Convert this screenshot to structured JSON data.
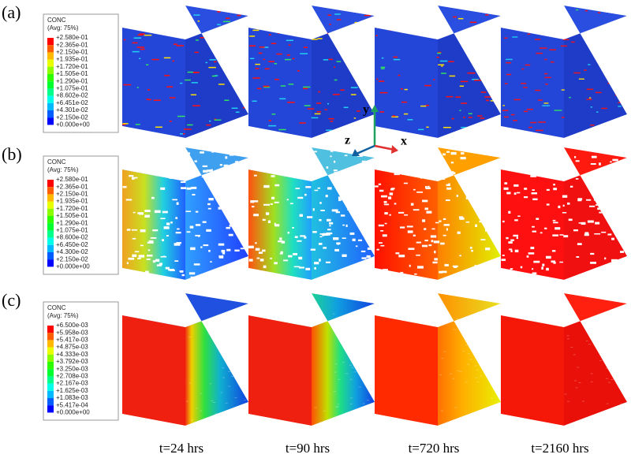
{
  "panels": [
    {
      "label": "(a)",
      "legend": {
        "title": "CONC",
        "subtitle": "(Avg: 75%)",
        "ticks": [
          "+2.580e-01",
          "+2.365e-01",
          "+2.150e-01",
          "+1.935e-01",
          "+1.720e-01",
          "+1.505e-01",
          "+1.290e-01",
          "+1.075e-01",
          "+8.602e-02",
          "+6.451e-02",
          "+4.301e-02",
          "+2.150e-02",
          "+0.000e+00"
        ]
      }
    },
    {
      "label": "(b)",
      "legend": {
        "title": "CONC",
        "subtitle": "(Avg: 75%)",
        "ticks": [
          "+2.580e-01",
          "+2.365e-01",
          "+2.150e-01",
          "+1.935e-01",
          "+1.720e-01",
          "+1.505e-01",
          "+1.290e-01",
          "+1.075e-01",
          "+8.600e-02",
          "+6.450e-02",
          "+4.300e-02",
          "+2.150e-02",
          "+0.000e+00"
        ]
      }
    },
    {
      "label": "(c)",
      "legend": {
        "title": "CONC",
        "subtitle": "(Avg: 75%)",
        "ticks": [
          "+6.500e-03",
          "+5.958e-03",
          "+5.417e-03",
          "+4.875e-03",
          "+4.333e-03",
          "+3.792e-03",
          "+3.250e-03",
          "+2.708e-03",
          "+2.167e-03",
          "+1.625e-03",
          "+1.083e-03",
          "+5.417e-04",
          "+0.000e+00"
        ]
      }
    }
  ],
  "axes": {
    "y": "y",
    "z": "z",
    "x": "x"
  },
  "times": [
    "t=24 hrs",
    "t=90 hrs",
    "t=720 hrs",
    "t=2160 hrs"
  ]
}
